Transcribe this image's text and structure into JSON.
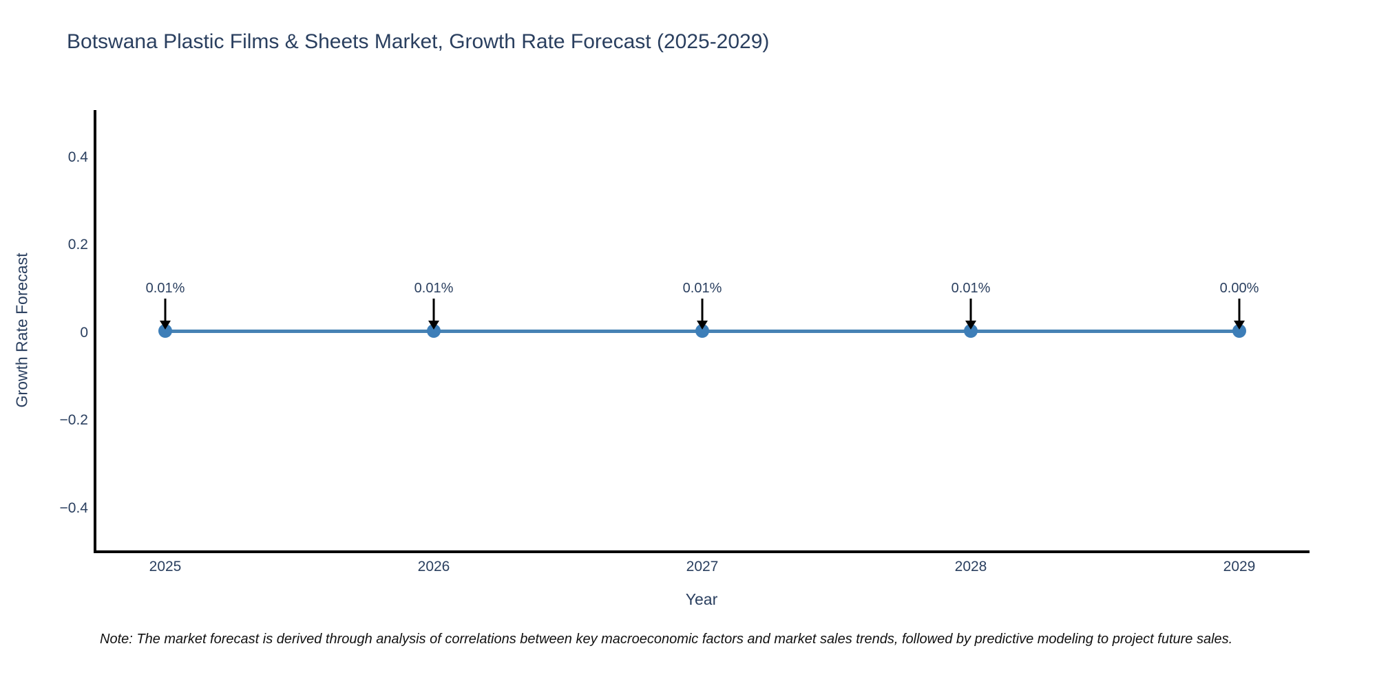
{
  "title": "Botswana Plastic Films & Sheets Market, Growth Rate Forecast (2025-2029)",
  "note": "Note: The market forecast is derived through analysis of correlations between key macroeconomic factors and market sales trends, followed by predictive modeling to project future sales.",
  "colors": {
    "line": "#4682b4",
    "marker": "#3d7eb8",
    "axis": "#000000",
    "text": "#2a3f5f",
    "note_text": "#111111",
    "background": "#ffffff",
    "arrow": "#000000"
  },
  "chart_data": {
    "type": "line",
    "title": "Botswana Plastic Films & Sheets Market, Growth Rate Forecast (2025-2029)",
    "xlabel": "Year",
    "ylabel": "Growth Rate Forecast",
    "x": [
      2025,
      2026,
      2027,
      2028,
      2029
    ],
    "values": [
      0.01,
      0.01,
      0.01,
      0.01,
      0.0
    ],
    "unit": "%",
    "annotations": [
      "0.01%",
      "0.01%",
      "0.01%",
      "0.01%",
      "0.00%"
    ],
    "xtick_labels": [
      "2025",
      "2026",
      "2027",
      "2028",
      "2029"
    ],
    "ytick_values": [
      0.4,
      0.2,
      0,
      -0.2,
      -0.4
    ],
    "ytick_labels": [
      "0.4",
      "0.2",
      "0",
      "−0.2",
      "−0.4"
    ],
    "ylim": [
      -0.5,
      0.51
    ],
    "grid": false,
    "legend_position": "none",
    "marker_style": "circle",
    "annotation_arrow": "down"
  }
}
